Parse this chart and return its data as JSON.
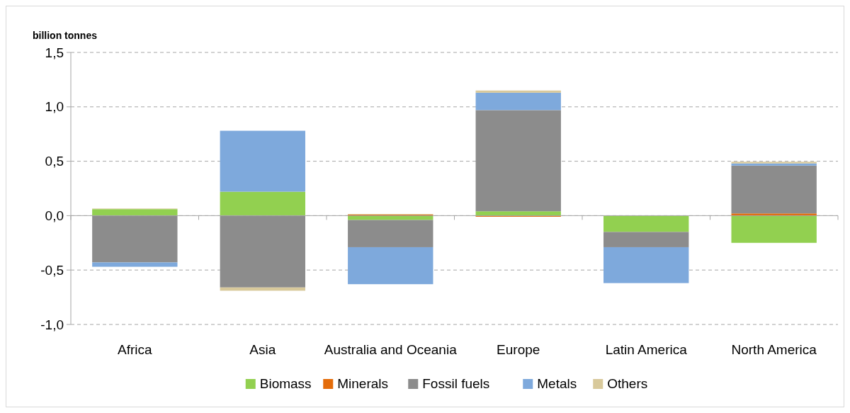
{
  "chart_data": {
    "type": "bar",
    "stacked": true,
    "ylabel": "billion tonnes",
    "categories": [
      "Africa",
      "Asia",
      "Australia and Oceania",
      "Europe",
      "Latin America",
      "North America"
    ],
    "series": [
      {
        "name": "Biomass",
        "color": "#92d050",
        "values": [
          0.06,
          0.22,
          -0.04,
          0.04,
          -0.15,
          -0.25
        ]
      },
      {
        "name": "Minerals",
        "color": "#e46c0a",
        "values": [
          0,
          0,
          0.01,
          -0.01,
          0,
          0.02
        ]
      },
      {
        "name": "Fossil fuels",
        "color": "#8c8c8c",
        "values": [
          -0.43,
          -0.66,
          -0.25,
          0.93,
          -0.14,
          0.44
        ]
      },
      {
        "name": "Metals",
        "color": "#7ea9dc",
        "values": [
          -0.04,
          0.56,
          -0.34,
          0.16,
          -0.33,
          0.02
        ]
      },
      {
        "name": "Others",
        "color": "#d8c99b",
        "values": [
          0.005,
          -0.03,
          0.005,
          0.02,
          null,
          0.015
        ]
      }
    ],
    "ylim": [
      -1.0,
      1.5
    ],
    "yticks": [
      {
        "value": -1.0,
        "label": "-1,0"
      },
      {
        "value": -0.5,
        "label": "-0,5"
      },
      {
        "value": 0,
        "label": "0,0"
      },
      {
        "value": 0.5,
        "label": "0,5"
      },
      {
        "value": 1.0,
        "label": "1,0"
      },
      {
        "value": 1.5,
        "label": "1,5"
      }
    ],
    "grid": "y",
    "legend": "bottom"
  }
}
